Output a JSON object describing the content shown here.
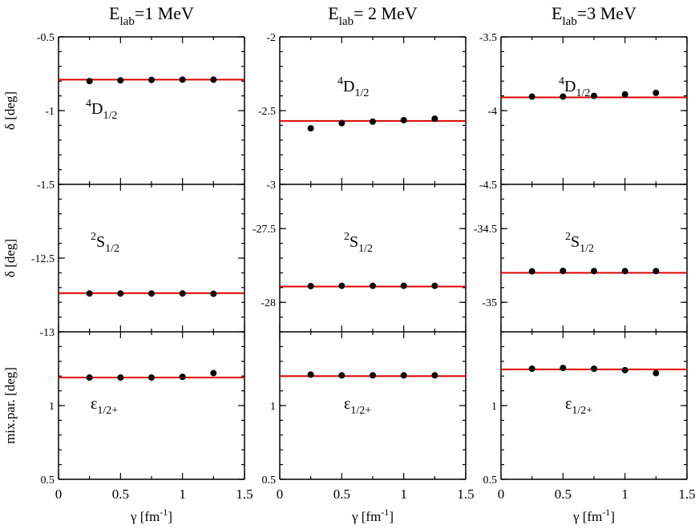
{
  "figure": {
    "columns": [
      {
        "title_main": "E",
        "title_sub": "lab",
        "title_rest": "=1 MeV"
      },
      {
        "title_main": "E",
        "title_sub": "lab",
        "title_rest": "= 2 MeV"
      },
      {
        "title_main": "E",
        "title_sub": "lab",
        "title_rest": "=3 MeV"
      }
    ],
    "row_labels": [
      {
        "greek": "δ",
        "unit": " [deg]"
      },
      {
        "greek": "δ",
        "unit": " [deg]"
      },
      {
        "greek": "",
        "unit": "mix.par. [deg]"
      }
    ],
    "xlabel": {
      "greek": "γ",
      "unit": " [fm",
      "sup": "-1",
      "close": "]"
    },
    "colors": {
      "fit": "#e00000",
      "points": "#000000",
      "axes": "#000000"
    }
  },
  "chart_data": [
    {
      "type": "scatter",
      "column": 0,
      "row": 0,
      "annotation": {
        "sup": "4",
        "main": "D",
        "sub": "1/2"
      },
      "x": [
        0.25,
        0.5,
        0.75,
        1.0,
        1.25
      ],
      "y": [
        -0.8,
        -0.795,
        -0.792,
        -0.79,
        -0.79
      ],
      "fit_y": -0.79,
      "xlim": [
        0,
        1.5
      ],
      "ylim": [
        -1.5,
        -0.5
      ],
      "xticks": [
        0,
        0.5,
        1,
        1.5
      ],
      "yticks": [
        -0.5,
        -1,
        -1.5
      ]
    },
    {
      "type": "scatter",
      "column": 0,
      "row": 1,
      "annotation": {
        "sup": "2",
        "main": "S",
        "sub": "1/2"
      },
      "x": [
        0.25,
        0.5,
        0.75,
        1.0,
        1.25
      ],
      "y": [
        -12.74,
        -12.74,
        -12.74,
        -12.74,
        -12.742
      ],
      "fit_y": -12.738,
      "xlim": [
        0,
        1.5
      ],
      "ylim": [
        -13,
        -12
      ],
      "xticks": [
        0,
        0.5,
        1,
        1.5
      ],
      "yticks": [
        -12.5,
        -13
      ]
    },
    {
      "type": "scatter",
      "column": 0,
      "row": 2,
      "annotation": {
        "sup": "",
        "main": "ε",
        "sub": "1/2+"
      },
      "x": [
        0.25,
        0.5,
        0.75,
        1.0,
        1.25
      ],
      "y": [
        1.19,
        1.19,
        1.19,
        1.195,
        1.22
      ],
      "fit_y": 1.19,
      "xlim": [
        0,
        1.5
      ],
      "ylim": [
        0.5,
        1.5
      ],
      "xticks": [
        0,
        0.5,
        1,
        1.5
      ],
      "yticks": [
        1,
        0.5
      ],
      "xtick_labels": [
        "0",
        "0.5",
        "1",
        "1.5"
      ]
    },
    {
      "type": "scatter",
      "column": 1,
      "row": 0,
      "annotation": {
        "sup": "4",
        "main": "D",
        "sub": "1/2"
      },
      "x": [
        0.25,
        0.5,
        0.75,
        1.0,
        1.25
      ],
      "y": [
        -2.62,
        -2.585,
        -2.575,
        -2.565,
        -2.555
      ],
      "fit_y": -2.57,
      "xlim": [
        0,
        1.5
      ],
      "ylim": [
        -3,
        -2
      ],
      "xticks": [
        0,
        0.5,
        1,
        1.5
      ],
      "yticks": [
        -2,
        -2.5,
        -3
      ]
    },
    {
      "type": "scatter",
      "column": 1,
      "row": 1,
      "annotation": {
        "sup": "2",
        "main": "S",
        "sub": "1/2"
      },
      "x": [
        0.25,
        0.5,
        0.75,
        1.0,
        1.25
      ],
      "y": [
        -27.89,
        -27.888,
        -27.888,
        -27.888,
        -27.888
      ],
      "fit_y": -27.893,
      "xlim": [
        0,
        1.5
      ],
      "ylim": [
        -28.2,
        -27.2
      ],
      "xticks": [
        0,
        0.5,
        1,
        1.5
      ],
      "yticks": [
        -27.5,
        -28
      ]
    },
    {
      "type": "scatter",
      "column": 1,
      "row": 2,
      "annotation": {
        "sup": "",
        "main": "ε",
        "sub": "1/2+"
      },
      "x": [
        0.25,
        0.5,
        0.75,
        1.0,
        1.25
      ],
      "y": [
        1.21,
        1.205,
        1.205,
        1.205,
        1.205
      ],
      "fit_y": 1.2,
      "xlim": [
        0,
        1.5
      ],
      "ylim": [
        0.5,
        1.5
      ],
      "xticks": [
        0,
        0.5,
        1,
        1.5
      ],
      "yticks": [
        1,
        0.5
      ],
      "xtick_labels": [
        "0",
        "0.5",
        "1",
        "1.5"
      ]
    },
    {
      "type": "scatter",
      "column": 2,
      "row": 0,
      "annotation": {
        "sup": "4",
        "main": "D",
        "sub": "1/2"
      },
      "x": [
        0.25,
        0.5,
        0.75,
        1.0,
        1.25
      ],
      "y": [
        -3.905,
        -3.905,
        -3.9,
        -3.89,
        -3.88
      ],
      "fit_y": -3.91,
      "xlim": [
        0,
        1.5
      ],
      "ylim": [
        -4.5,
        -3.5
      ],
      "xticks": [
        0,
        0.5,
        1,
        1.5
      ],
      "yticks": [
        -3.5,
        -4,
        -4.5
      ]
    },
    {
      "type": "scatter",
      "column": 2,
      "row": 1,
      "annotation": {
        "sup": "2",
        "main": "S",
        "sub": "1/2"
      },
      "x": [
        0.25,
        0.5,
        0.75,
        1.0,
        1.25
      ],
      "y": [
        -34.79,
        -34.787,
        -34.788,
        -34.788,
        -34.788
      ],
      "fit_y": -34.8,
      "xlim": [
        0,
        1.5
      ],
      "ylim": [
        -35.2,
        -34.2
      ],
      "xticks": [
        0,
        0.5,
        1,
        1.5
      ],
      "yticks": [
        -34.5,
        -35
      ]
    },
    {
      "type": "scatter",
      "column": 2,
      "row": 2,
      "annotation": {
        "sup": "",
        "main": "ε",
        "sub": "1/2+"
      },
      "x": [
        0.25,
        0.5,
        0.75,
        1.0,
        1.25
      ],
      "y": [
        1.25,
        1.255,
        1.25,
        1.24,
        1.22
      ],
      "fit_y": 1.245,
      "xlim": [
        0,
        1.5
      ],
      "ylim": [
        0.5,
        1.5
      ],
      "xticks": [
        0,
        0.5,
        1,
        1.5
      ],
      "yticks": [
        1,
        0.5
      ],
      "xtick_labels": [
        "0",
        "0.5",
        "1",
        "1.5"
      ]
    }
  ]
}
